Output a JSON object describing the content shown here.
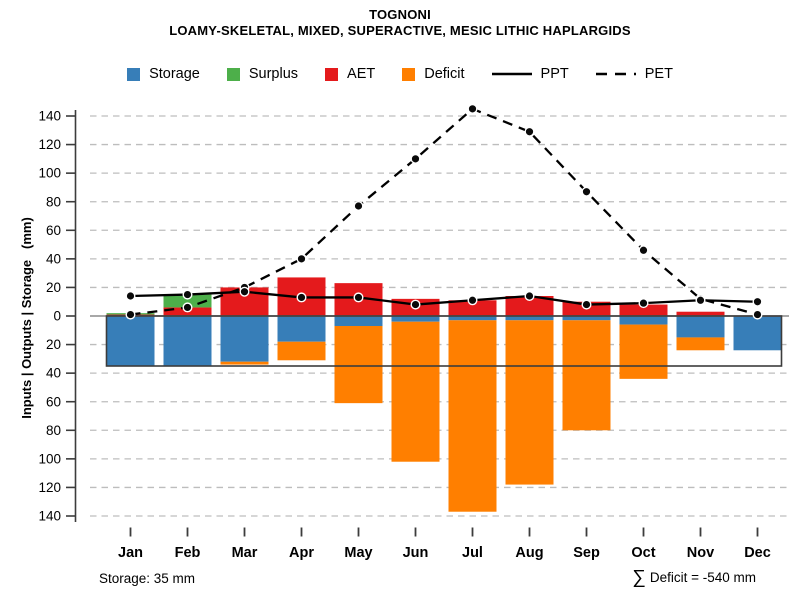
{
  "title": "TOGNONI",
  "subtitle": "LOAMY-SKELETAL, MIXED, SUPERACTIVE, MESIC LITHIC HAPLARGIDS",
  "legend": {
    "items": [
      {
        "label": "Storage",
        "swatch": "square",
        "color": "#377EB8"
      },
      {
        "label": "Surplus",
        "swatch": "square",
        "color": "#4DAF4A"
      },
      {
        "label": "AET",
        "swatch": "square",
        "color": "#E41A1C"
      },
      {
        "label": "Deficit",
        "swatch": "square",
        "color": "#FF7F00"
      },
      {
        "label": "PPT",
        "swatch": "solid-line",
        "color": "#000000"
      },
      {
        "label": "PET",
        "swatch": "dashed-line",
        "color": "#000000"
      }
    ]
  },
  "axes": {
    "y_label": "Inputs | Outputs | Storage   (mm)",
    "y_ticks": [
      {
        "v": 140,
        "label": "140"
      },
      {
        "v": 120,
        "label": "120"
      },
      {
        "v": 100,
        "label": "100"
      },
      {
        "v": 80,
        "label": "80"
      },
      {
        "v": 60,
        "label": "60"
      },
      {
        "v": 40,
        "label": "40"
      },
      {
        "v": 20,
        "label": "20"
      },
      {
        "v": 0,
        "label": "0"
      },
      {
        "v": -20,
        "label": "20"
      },
      {
        "v": -40,
        "label": "40"
      },
      {
        "v": -60,
        "label": "60"
      },
      {
        "v": -80,
        "label": "80"
      },
      {
        "v": -100,
        "label": "100"
      },
      {
        "v": -120,
        "label": "120"
      },
      {
        "v": -140,
        "label": "140"
      }
    ]
  },
  "footer": {
    "storage_note": "Storage: 35 mm",
    "deficit_sigma": "∑",
    "deficit_text": "Deficit = -540 mm"
  },
  "chart_data": {
    "type": "bar",
    "subtype": "stacked-bars-with-overlaid-lines",
    "title": "TOGNONI",
    "subtitle": "LOAMY-SKELETAL, MIXED, SUPERACTIVE, MESIC LITHIC HAPLARGIDS",
    "xlabel": "",
    "ylabel": "Inputs | Outputs | Storage   (mm)",
    "ylim": [
      -145,
      150
    ],
    "grid": "dashed horizontal lines every 20 mm, solid gray line at 0",
    "legend_position": "top-center",
    "categories": [
      "Jan",
      "Feb",
      "Mar",
      "Apr",
      "May",
      "Jun",
      "Jul",
      "Aug",
      "Sep",
      "Oct",
      "Nov",
      "Dec"
    ],
    "series": [
      {
        "name": "AET",
        "type": "bar",
        "stack": "above-zero",
        "order": 1,
        "color": "#E41A1C",
        "values": [
          1,
          6,
          20,
          27,
          23,
          12,
          11,
          14,
          10,
          8,
          3,
          0
        ]
      },
      {
        "name": "Surplus",
        "type": "bar",
        "stack": "above-zero",
        "order": 2,
        "color": "#4DAF4A",
        "values": [
          1,
          9,
          0,
          0,
          0,
          0,
          0,
          0,
          0,
          0,
          0,
          0
        ]
      },
      {
        "name": "Storage",
        "type": "bar",
        "stack": "below-zero",
        "order": 1,
        "color": "#377EB8",
        "values": [
          35,
          35,
          32,
          18,
          7,
          4,
          3,
          3,
          3,
          6,
          15,
          24
        ]
      },
      {
        "name": "Deficit",
        "type": "bar",
        "stack": "below-zero",
        "order": 2,
        "color": "#FF7F00",
        "values": [
          0,
          0,
          2,
          13,
          54,
          98,
          134,
          115,
          77,
          38,
          9,
          0
        ]
      },
      {
        "name": "PPT",
        "type": "line",
        "style": "solid",
        "color": "#000000",
        "marker": "filled-circle",
        "values": [
          14,
          15,
          17,
          13,
          13,
          8,
          11,
          14,
          8,
          9,
          11,
          10
        ]
      },
      {
        "name": "PET",
        "type": "line",
        "style": "dashed",
        "color": "#000000",
        "marker": "filled-circle",
        "values": [
          1,
          6,
          20,
          40,
          77,
          110,
          145,
          129,
          87,
          46,
          12,
          1
        ]
      }
    ],
    "annotations": {
      "storage_capacity_mm": 35,
      "storage_capacity_box": "rectangle outline from 0 to -35 mm spanning Jan-Dec",
      "total_deficit_mm": -540
    }
  }
}
